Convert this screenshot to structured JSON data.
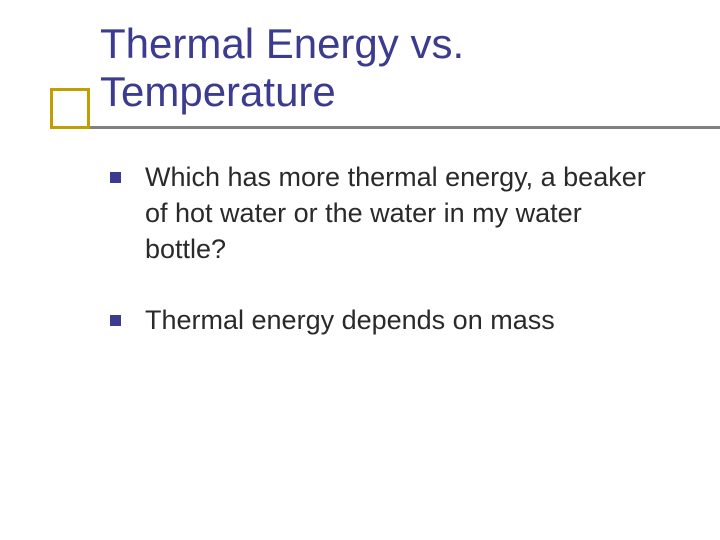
{
  "slide": {
    "title": "Thermal Energy vs. Temperature",
    "bullets": [
      {
        "text": "Which has more thermal energy, a beaker of hot water or the water in my water bottle?"
      },
      {
        "text": "Thermal energy depends on mass"
      }
    ]
  },
  "style": {
    "background_color": "#ffffff",
    "title_color": "#3b3b8f",
    "title_fontsize": 42,
    "body_color": "#2a2a2a",
    "body_fontsize": 27,
    "bullet_marker_color": "#3b3b8f",
    "bullet_marker_size": 11,
    "accent_box_border_color": "#c0a000",
    "accent_box_size": 40,
    "underline_color": "#808080",
    "font_family": "Verdana"
  }
}
